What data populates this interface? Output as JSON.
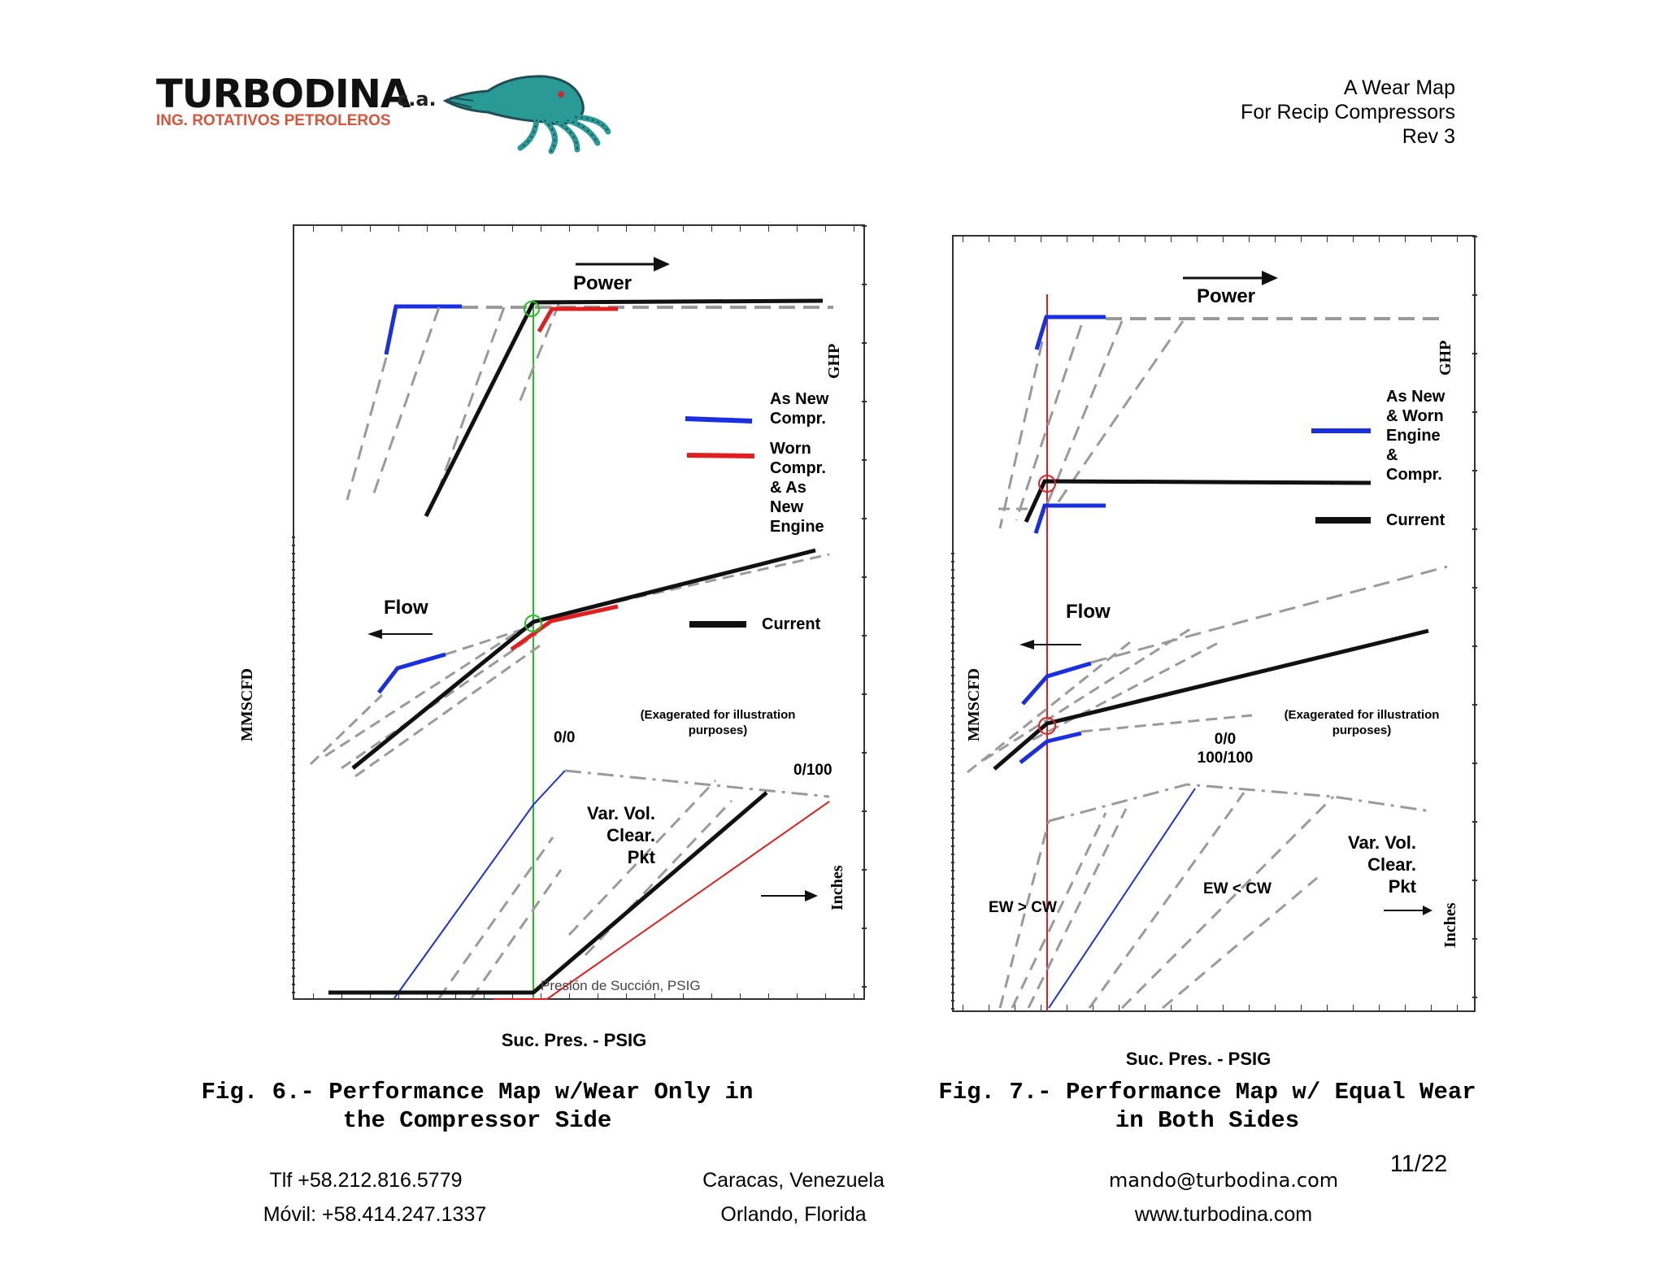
{
  "header": {
    "logo_name": "TURBODINA",
    "logo_suffix": "c.a.",
    "logo_subtitle": "ING. ROTATIVOS PETROLEROS",
    "mascot_icon": "squid-mascot-icon",
    "doc_title_line1": "A Wear Map",
    "doc_title_line2": "For Recip Compressors",
    "doc_title_line3": "Rev 3"
  },
  "fig6": {
    "power_label": "Power",
    "flow_label": "Flow",
    "ghp_label": "GHP",
    "mmscfd_label": "MMSCFD",
    "inches_label": "Inches",
    "legend_as_new": [
      "As New",
      "Compr."
    ],
    "legend_worn": [
      "Worn",
      "Compr.",
      "& As",
      "New",
      "Engine"
    ],
    "legend_current": "Current",
    "exaggerated_note": [
      "(Exagerated for illustration",
      "purposes)"
    ],
    "label_00": "0/0",
    "label_0100": "0/100",
    "vvcp_label": [
      "Var. Vol.",
      "Clear.",
      "Pkt"
    ],
    "suction_label": "Presión de Succión, PSIG",
    "xlabel": "Suc. Pres. - PSIG",
    "caption": "Fig. 6.- Performance Map w/Wear Only in\nthe Compressor Side"
  },
  "fig7": {
    "power_label": "Power",
    "flow_label": "Flow",
    "ghp_label": "GHP",
    "mmscfd_label": "MMSCFD",
    "inches_label": "Inches",
    "legend_as_new_worn": [
      "As New",
      "& Worn",
      "Engine",
      "&",
      "Compr."
    ],
    "legend_current": "Current",
    "exaggerated_note": [
      "(Exagerated for illustration",
      "purposes)"
    ],
    "label_00": "0/0",
    "label_100100": "100/100",
    "vvcp_label": [
      "Var. Vol.",
      "Clear.",
      "Pkt"
    ],
    "ew_gt_cw": "EW > CW",
    "ew_lt_cw": "EW < CW",
    "xlabel": "Suc. Pres. - PSIG",
    "caption": "Fig. 7.- Performance Map w/ Equal Wear\nin Both Sides"
  },
  "footer": {
    "phone": "Tlf +58.212.816.5779",
    "mobile": "Móvil: +58.414.247.1337",
    "city1": "Caracas, Venezuela",
    "city2": "Orlando, Florida",
    "email": "mando@turbodina.com",
    "web": "www.turbodina.com",
    "page": "11/22"
  },
  "colors": {
    "logo_orange": "#d8553a",
    "mascot_teal": "#2a9a96",
    "blue": "#1a2fe0",
    "red": "#e02020",
    "green": "#22c022",
    "dash_gray": "#9a9a9a"
  }
}
